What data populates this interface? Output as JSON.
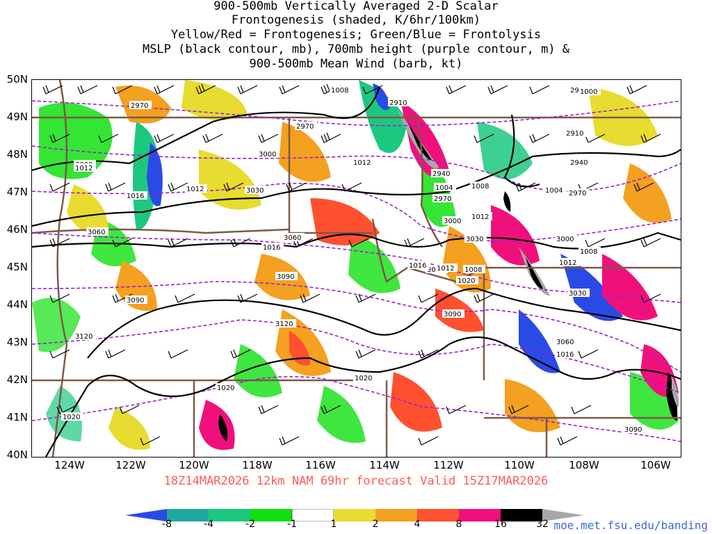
{
  "title": {
    "line1": "900-500mb Vertically Averaged 2-D Scalar",
    "line2": "Frontogenesis (shaded, K/6hr/100km)",
    "line3": "Yellow/Red = Frontogenesis;  Green/Blue = Frontolysis",
    "line4": "MSLP (black contour, mb), 700mb height (purple contour, m) &",
    "line5": "900-500mb Mean Wind (barb, kt)"
  },
  "lat_labels": [
    "50N",
    "49N",
    "48N",
    "47N",
    "46N",
    "45N",
    "44N",
    "43N",
    "42N",
    "41N",
    "40N"
  ],
  "lon_labels": [
    "124W",
    "122W",
    "120W",
    "118W",
    "116W",
    "114W",
    "112W",
    "110W",
    "108W",
    "106W"
  ],
  "valid_line": "18Z14MAR2026 12km NAM 69hr forecast Valid 15Z17MAR2026",
  "colorbar": {
    "labels": [
      "-8",
      "-4",
      "-2",
      "-1",
      "1",
      "2",
      "4",
      "8",
      "16",
      "32"
    ],
    "colors": [
      "#2a4ae6",
      "#1fa8a0",
      "#1cc880",
      "#10e010",
      "#ffffff",
      "#e8dc30",
      "#f4a020",
      "#ff5030",
      "#f0107c",
      "#000000",
      "#a8a8a8"
    ]
  },
  "url": "moe.met.fsu.edu/banding",
  "contour_labels": {
    "height": [
      "2970",
      "2970",
      "2910",
      "3000",
      "3000",
      "3030",
      "3060",
      "3060",
      "3090",
      "3090",
      "3120",
      "3120",
      "2940",
      "2970",
      "3000",
      "3030",
      "3060",
      "3090",
      "3030",
      "3060",
      "3000",
      "2970",
      "2940",
      "2910",
      "2910",
      "3090"
    ],
    "mslp": [
      "1008",
      "1012",
      "1012",
      "1016",
      "1016",
      "1020",
      "1020",
      "1020",
      "1004",
      "1008",
      "1012",
      "1016",
      "1012",
      "1004",
      "1008",
      "1012",
      "1016",
      "1020",
      "1008",
      "1000",
      "1012"
    ]
  },
  "colors": {
    "valid_text": "#ff5a5a",
    "url": "#3a6bd8",
    "height_contour": "#9a1fd0",
    "mslp_contour": "#000000",
    "borders": "#7a5a48"
  }
}
